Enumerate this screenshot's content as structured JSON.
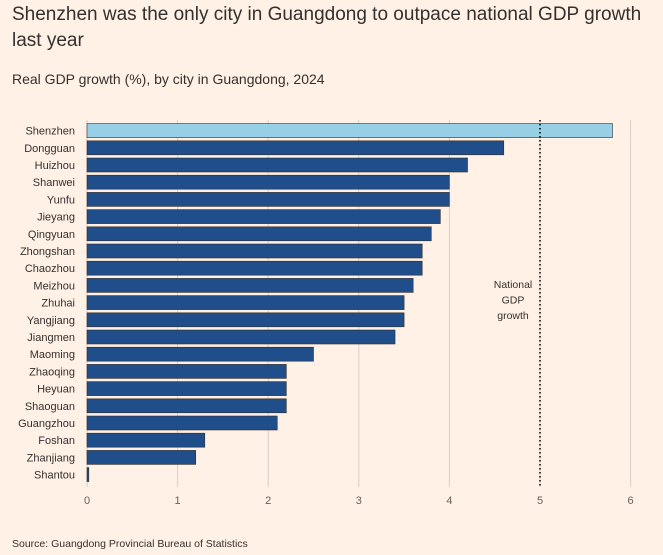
{
  "header": {
    "title": "Shenzhen was the only city in Guangdong to outpace national GDP growth last year",
    "subtitle": "Real GDP growth (%), by city in Guangdong, 2024"
  },
  "footer": {
    "source": "Source: Guangdong Provincial Bureau of Statistics"
  },
  "colors": {
    "bar": "#1f4e8a",
    "highlight": "#96cfe6",
    "bar_edge": "#33302e",
    "grid": "#d8cfc7",
    "background": "#fff1e5"
  },
  "chart_data": {
    "type": "bar",
    "orientation": "horizontal",
    "title": "Shenzhen was the only city in Guangdong to outpace national GDP growth last year",
    "subtitle": "Real GDP growth (%), by city in Guangdong, 2024",
    "xlabel": "",
    "ylabel": "",
    "xlim": [
      0,
      6
    ],
    "xticks": [
      0,
      1,
      2,
      3,
      4,
      5,
      6
    ],
    "grid": true,
    "highlight_category": "Shenzhen",
    "categories": [
      "Shenzhen",
      "Dongguan",
      "Huizhou",
      "Shanwei",
      "Yunfu",
      "Jieyang",
      "Qingyuan",
      "Zhongshan",
      "Chaozhou",
      "Meizhou",
      "Zhuhai",
      "Yangjiang",
      "Jiangmen",
      "Maoming",
      "Zhaoqing",
      "Heyuan",
      "Shaoguan",
      "Guangzhou",
      "Foshan",
      "Zhanjiang",
      "Shantou"
    ],
    "values": [
      5.8,
      4.6,
      4.2,
      4.0,
      4.0,
      3.9,
      3.8,
      3.7,
      3.7,
      3.6,
      3.5,
      3.5,
      3.4,
      2.5,
      2.2,
      2.2,
      2.2,
      2.1,
      1.3,
      1.2,
      0.02
    ],
    "reference_line": {
      "value": 5.0,
      "style": "dotted",
      "label_lines": [
        "National",
        "GDP",
        "growth"
      ]
    }
  }
}
